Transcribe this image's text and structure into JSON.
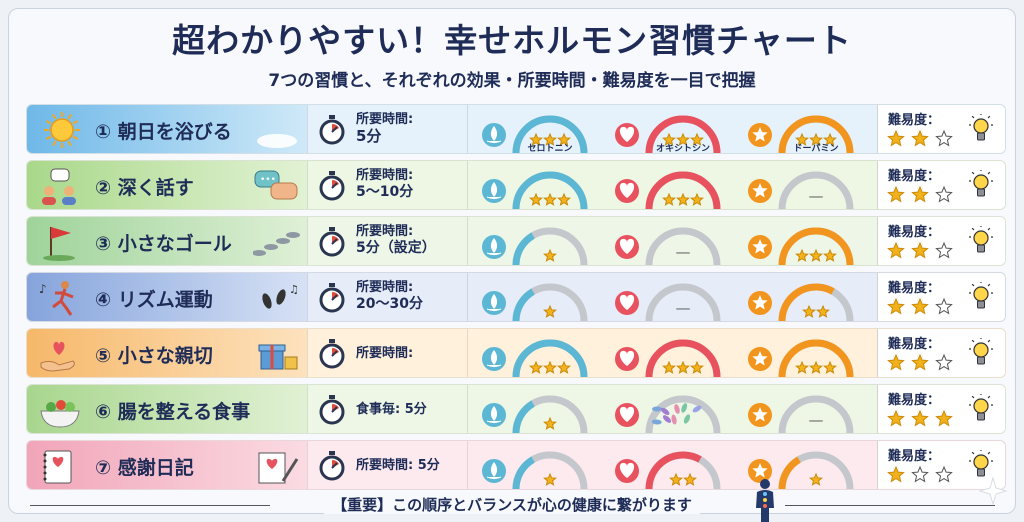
{
  "title": "超わかりやすい！幸せホルモン習慣チャート",
  "subtitle": "7つの習慣と、それぞれの効果・所要時間・難易度を一目で把握",
  "hormones": [
    "セロトニン",
    "オキシトシン",
    "ドーパミン"
  ],
  "difficulty_label": "難易度：",
  "colors": {
    "serotonin": "#5bb7d4",
    "oxytocin": "#e8525f",
    "dopamine": "#f2951f",
    "gauge_track": "#c4c7cc",
    "star": "#f3b21b"
  },
  "habits": [
    {
      "name": "① 朝日を浴びる",
      "time_label": "所要時間:",
      "time_value": "5分",
      "serotonin": 3,
      "oxytocin": 3,
      "dopamine": 3,
      "oxytocin_symbol": "",
      "dopamine_symbol": "",
      "difficulty": 2,
      "show_names": true
    },
    {
      "name": "② 深く話す",
      "time_label": "所要時間:",
      "time_value": "5〜10分",
      "serotonin": 3,
      "oxytocin": 3,
      "dopamine": 0,
      "oxytocin_symbol": "",
      "dopamine_symbol": "—",
      "difficulty": 2,
      "show_names": false
    },
    {
      "name": "③ 小さなゴール",
      "time_label": "所要時間:",
      "time_value": "5分（設定）",
      "serotonin": 1,
      "oxytocin": 0,
      "dopamine": 3,
      "oxytocin_symbol": "—",
      "dopamine_symbol": "",
      "difficulty": 2,
      "show_names": false
    },
    {
      "name": "④ リズム運動",
      "time_label": "所要時間:",
      "time_value": "20〜30分",
      "serotonin": 1,
      "oxytocin": 0,
      "dopamine": 2,
      "oxytocin_symbol": "—",
      "dopamine_symbol": "",
      "difficulty": 2,
      "show_names": false
    },
    {
      "name": "⑤ 小さな親切",
      "time_label": "所要時間:",
      "time_value": "",
      "serotonin": 3,
      "oxytocin": 3,
      "dopamine": 3,
      "oxytocin_symbol": "",
      "dopamine_symbol": "",
      "difficulty": 2,
      "show_names": false
    },
    {
      "name": "⑥ 腸を整える食事",
      "time_label": "食事毎: 5分",
      "time_value": "",
      "serotonin": 1,
      "oxytocin": 0,
      "dopamine": 0,
      "oxytocin_symbol": "bacteria",
      "dopamine_symbol": "—",
      "difficulty": 3,
      "show_names": false
    },
    {
      "name": "⑦ 感謝日記",
      "time_label": "所要時間: 5分",
      "time_value": "",
      "serotonin": 1,
      "oxytocin": 2,
      "dopamine": 1,
      "oxytocin_symbol": "",
      "dopamine_symbol": "",
      "difficulty": 1,
      "show_names": false
    }
  ],
  "footer": "【重要】この順序とバランスが心の健康に繋がります"
}
